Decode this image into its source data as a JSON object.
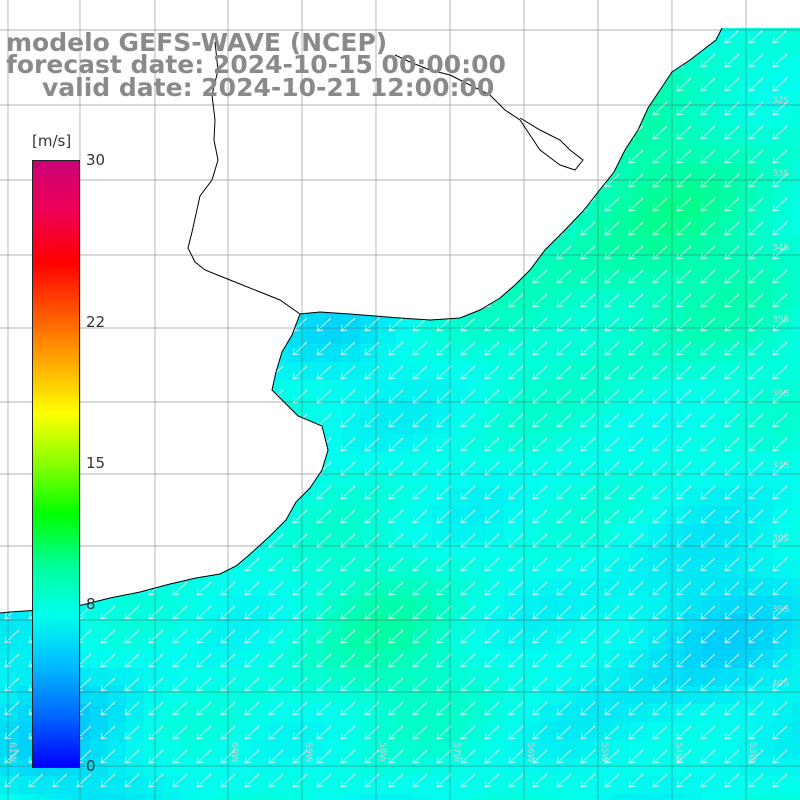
{
  "title": {
    "line1": "modelo GEFS-WAVE (NCEP)",
    "line2": "forecast date: 2024-10-15 00:00:00",
    "line3": "valid date: 2024-10-21 12:00:00"
  },
  "colorbar": {
    "unit": "[m/s]",
    "ticks": [
      "30",
      "22",
      "15",
      "8",
      "0"
    ],
    "tick_values": [
      30,
      22,
      15,
      8,
      0
    ],
    "range": [
      0,
      30
    ],
    "colors": [
      "#0000ff",
      "#0066ff",
      "#00bbff",
      "#00ffee",
      "#00ff99",
      "#00ff00",
      "#88ff00",
      "#ffff00",
      "#ffaa00",
      "#ff5500",
      "#ff0000",
      "#ee0055",
      "#cc0077"
    ]
  },
  "map": {
    "land_color": "#ffffff",
    "grid": true,
    "lat_labels": [
      "32S",
      "33S",
      "34S",
      "35S",
      "36S",
      "37S",
      "38S",
      "39S",
      "40S"
    ],
    "lon_labels": [
      "61W",
      "60W",
      "59W",
      "58W",
      "57W",
      "56W",
      "55W",
      "54W",
      "53W"
    ],
    "wind_direction": "southwest",
    "typical_speed": 8
  }
}
